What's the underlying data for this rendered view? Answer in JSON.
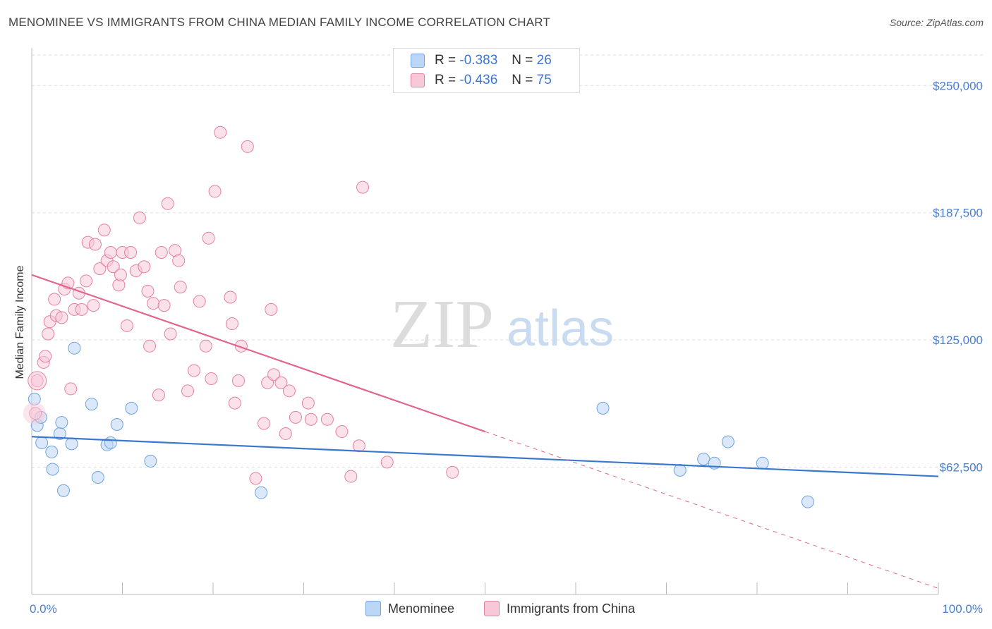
{
  "title": "MENOMINEE VS IMMIGRANTS FROM CHINA MEDIAN FAMILY INCOME CORRELATION CHART",
  "source": "Source: ZipAtlas.com",
  "watermark": {
    "zip": "ZIP",
    "atlas": "atlas"
  },
  "legend": {
    "r_label": "R =",
    "n_label": "N =",
    "series": [
      {
        "name": "Menominee",
        "r": "-0.383",
        "n": "26",
        "color": "#6ea3e0",
        "fill": "#bcd6f5"
      },
      {
        "name": "Immigrants from China",
        "r": "-0.436",
        "n": "75",
        "color": "#e680a3",
        "fill": "#f8c8d8"
      }
    ]
  },
  "chart_data": {
    "type": "scatter",
    "title": "MENOMINEE VS IMMIGRANTS FROM CHINA MEDIAN FAMILY INCOME CORRELATION CHART",
    "xlabel": "",
    "ylabel": "Median Family Income",
    "xlim": [
      0,
      100
    ],
    "ylim": [
      0,
      265000
    ],
    "x_tick_labels": [
      {
        "value": 0,
        "label": "0.0%"
      },
      {
        "value": 100,
        "label": "100.0%"
      }
    ],
    "y_ticks": [
      {
        "value": 250000,
        "label": "$250,000"
      },
      {
        "value": 187500,
        "label": "$187,500"
      },
      {
        "value": 125000,
        "label": "$125,000"
      },
      {
        "value": 62500,
        "label": "$62,500"
      }
    ],
    "series": [
      {
        "name": "Menominee",
        "color": "#3a78d0",
        "trend": {
          "x": [
            0,
            100
          ],
          "y": [
            77500,
            58000
          ],
          "dashed_from": null
        },
        "points": [
          [
            0.3,
            96000
          ],
          [
            0.6,
            83000
          ],
          [
            1.0,
            87000
          ],
          [
            1.1,
            74500
          ],
          [
            2.2,
            70000
          ],
          [
            2.3,
            61500
          ],
          [
            3.1,
            79000
          ],
          [
            3.3,
            84500
          ],
          [
            3.5,
            51000
          ],
          [
            4.4,
            74000
          ],
          [
            4.7,
            121000
          ],
          [
            6.6,
            93500
          ],
          [
            7.3,
            57500
          ],
          [
            8.3,
            73500
          ],
          [
            8.7,
            74500
          ],
          [
            9.4,
            83500
          ],
          [
            11.0,
            91500
          ],
          [
            13.1,
            65500
          ],
          [
            25.3,
            50000
          ],
          [
            63.0,
            91500
          ],
          [
            71.5,
            61000
          ],
          [
            74.1,
            66500
          ],
          [
            75.3,
            64500
          ],
          [
            76.8,
            75000
          ],
          [
            80.6,
            64500
          ],
          [
            85.6,
            45500
          ]
        ]
      },
      {
        "name": "Immigrants from China",
        "color": "#e0658f",
        "trend": {
          "x": [
            0,
            100
          ],
          "y": [
            157000,
            3000
          ],
          "dashed_from": 50
        },
        "points": [
          [
            0.4,
            89000
          ],
          [
            0.6,
            105000
          ],
          [
            1.3,
            114000
          ],
          [
            1.5,
            117000
          ],
          [
            1.8,
            128000
          ],
          [
            2.0,
            134000
          ],
          [
            2.5,
            145000
          ],
          [
            2.7,
            137000
          ],
          [
            3.3,
            136000
          ],
          [
            3.6,
            150000
          ],
          [
            4.0,
            153000
          ],
          [
            4.3,
            101000
          ],
          [
            4.7,
            140000
          ],
          [
            5.2,
            148000
          ],
          [
            5.5,
            140000
          ],
          [
            6.0,
            154000
          ],
          [
            6.2,
            173000
          ],
          [
            6.8,
            142000
          ],
          [
            7.0,
            172000
          ],
          [
            7.5,
            160000
          ],
          [
            8.0,
            179000
          ],
          [
            8.3,
            164000
          ],
          [
            8.7,
            168000
          ],
          [
            9.0,
            161000
          ],
          [
            9.6,
            152000
          ],
          [
            9.8,
            157000
          ],
          [
            10.0,
            168000
          ],
          [
            10.5,
            132000
          ],
          [
            10.9,
            168000
          ],
          [
            11.5,
            159000
          ],
          [
            11.9,
            185000
          ],
          [
            12.4,
            161000
          ],
          [
            12.8,
            149000
          ],
          [
            13.0,
            122000
          ],
          [
            13.4,
            143000
          ],
          [
            14.0,
            98000
          ],
          [
            14.3,
            168000
          ],
          [
            14.6,
            142000
          ],
          [
            15.0,
            192000
          ],
          [
            15.3,
            128000
          ],
          [
            15.8,
            169000
          ],
          [
            16.2,
            164000
          ],
          [
            16.4,
            151000
          ],
          [
            17.2,
            100000
          ],
          [
            17.9,
            110000
          ],
          [
            18.5,
            144000
          ],
          [
            19.2,
            122000
          ],
          [
            19.5,
            175000
          ],
          [
            19.8,
            106000
          ],
          [
            20.2,
            198000
          ],
          [
            20.8,
            227000
          ],
          [
            21.9,
            146000
          ],
          [
            22.1,
            133000
          ],
          [
            22.4,
            94000
          ],
          [
            22.8,
            105000
          ],
          [
            23.1,
            122000
          ],
          [
            23.8,
            220000
          ],
          [
            24.7,
            57000
          ],
          [
            25.6,
            84000
          ],
          [
            26.0,
            104000
          ],
          [
            26.4,
            140000
          ],
          [
            26.7,
            108000
          ],
          [
            27.5,
            104000
          ],
          [
            28.0,
            79000
          ],
          [
            28.4,
            100000
          ],
          [
            29.1,
            87000
          ],
          [
            30.5,
            94000
          ],
          [
            30.8,
            86000
          ],
          [
            32.6,
            86000
          ],
          [
            34.2,
            80000
          ],
          [
            35.2,
            58000
          ],
          [
            36.1,
            73000
          ],
          [
            36.5,
            200000
          ],
          [
            39.2,
            65000
          ],
          [
            46.4,
            60000
          ]
        ]
      }
    ]
  }
}
